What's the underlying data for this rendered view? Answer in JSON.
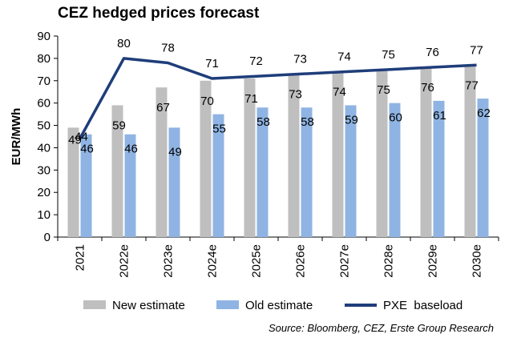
{
  "chart_data": {
    "type": "bar",
    "title": "CEZ hedged prices forecast",
    "ylabel": "EUR/MWh",
    "xlabel": "",
    "ylim": [
      0,
      90
    ],
    "yticks": [
      0,
      10,
      20,
      30,
      40,
      50,
      60,
      70,
      80,
      90
    ],
    "categories": [
      "2021",
      "2022e",
      "2023e",
      "2024e",
      "2025e",
      "2026e",
      "2027e",
      "2028e",
      "2029e",
      "2030e"
    ],
    "series": [
      {
        "name": "New estimate",
        "kind": "bar",
        "color": "#bfbfbf",
        "values": [
          49,
          59,
          67,
          70,
          71,
          73,
          74,
          75,
          76,
          77
        ]
      },
      {
        "name": "Old estimate",
        "kind": "bar",
        "color": "#8fb4e3",
        "values": [
          46,
          46,
          49,
          55,
          58,
          58,
          59,
          60,
          61,
          62
        ]
      },
      {
        "name": "PXE  baseload",
        "kind": "line",
        "color": "#1f3d7a",
        "values": [
          44,
          80,
          78,
          71,
          72,
          73,
          74,
          75,
          76,
          77
        ]
      }
    ],
    "legend": "bottom",
    "source": "Source: Bloomberg, CEZ, Erste Group Research"
  }
}
